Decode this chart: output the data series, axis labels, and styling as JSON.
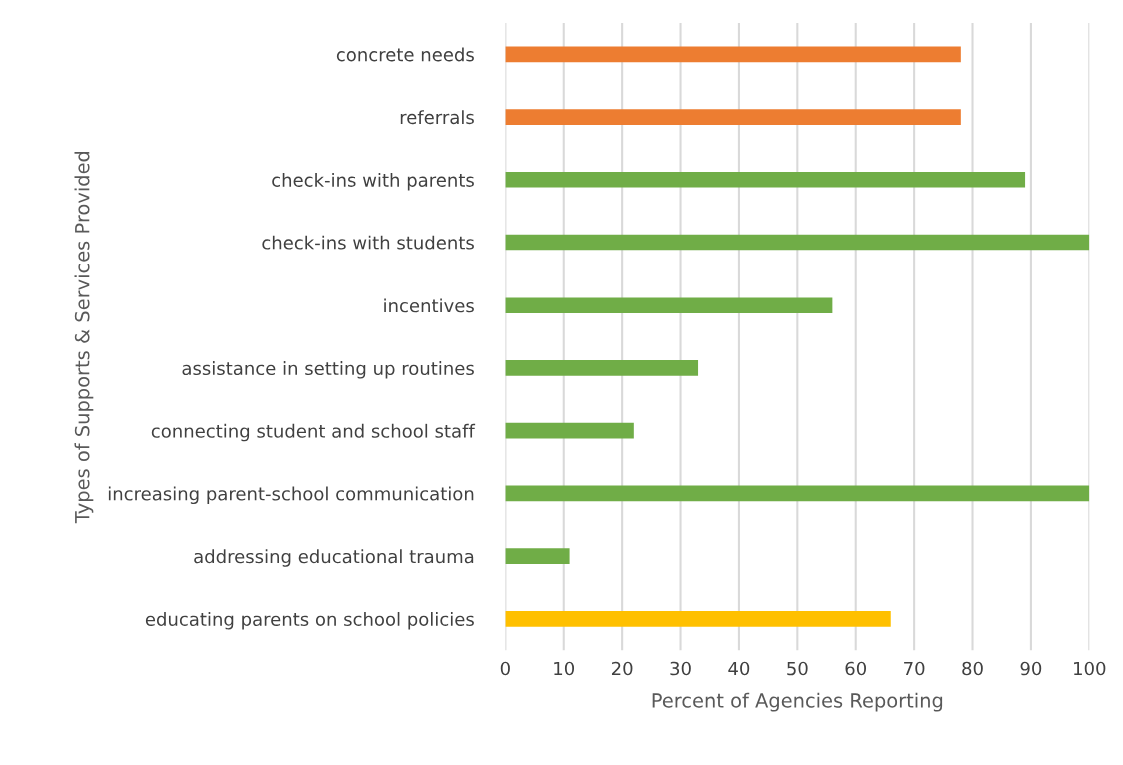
{
  "chart_data": {
    "type": "bar",
    "orientation": "horizontal",
    "categories": [
      "concrete needs",
      "referrals",
      "check-ins with parents",
      "check-ins with students",
      "incentives",
      "assistance in setting up routines",
      "connecting student and school staff",
      "increasing parent-school communication",
      "addressing educational trauma",
      "educating parents on school policies"
    ],
    "values": [
      78,
      78,
      89,
      100,
      56,
      33,
      22,
      100,
      11,
      66
    ],
    "colors": [
      "#ed7d31",
      "#ed7d31",
      "#70ad47",
      "#70ad47",
      "#70ad47",
      "#70ad47",
      "#70ad47",
      "#70ad47",
      "#70ad47",
      "#ffc000"
    ],
    "xlabel": "Percent of Agencies Reporting",
    "ylabel": "Types of Supports & Services Provided",
    "xlim": [
      0,
      100
    ],
    "xticks": [
      0,
      10,
      20,
      30,
      40,
      50,
      60,
      70,
      80,
      90,
      100
    ],
    "grid": "x"
  }
}
